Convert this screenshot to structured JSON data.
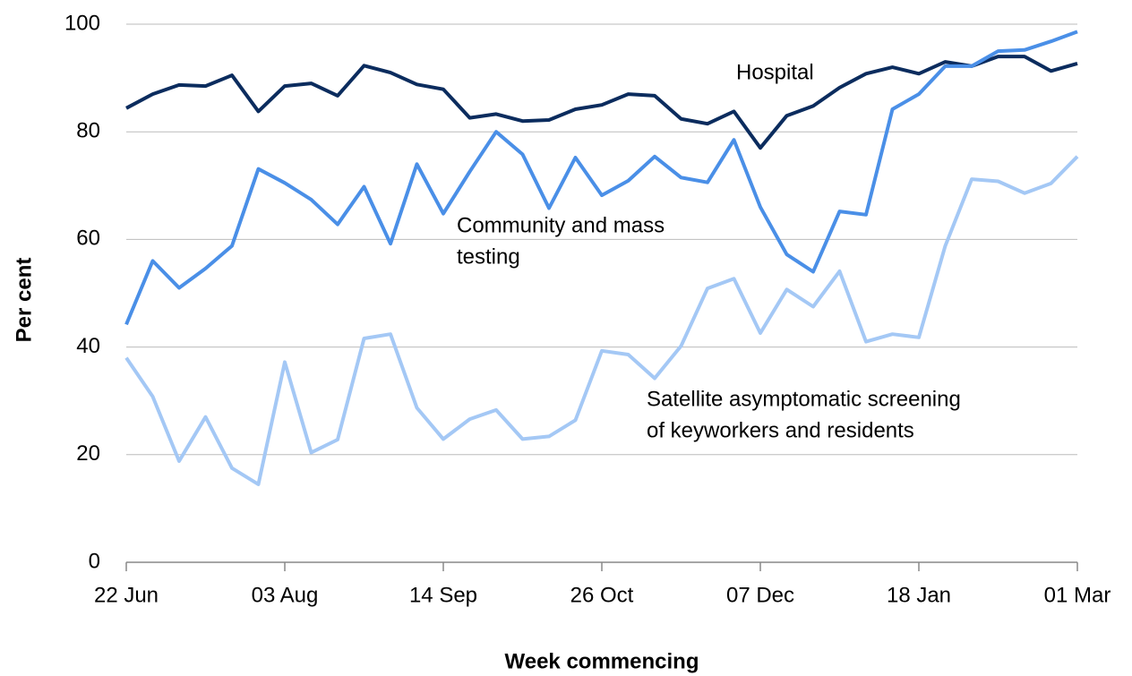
{
  "chart_data": {
    "type": "line",
    "x_label": "Week commencing",
    "y_label": "Per cent",
    "categories": [
      "22 Jun",
      null,
      null,
      null,
      null,
      null,
      "03 Aug",
      null,
      null,
      null,
      null,
      null,
      "14 Sep",
      null,
      null,
      null,
      null,
      null,
      "26 Oct",
      null,
      null,
      null,
      null,
      null,
      "07 Dec",
      null,
      null,
      null,
      null,
      null,
      "18 Jan",
      null,
      null,
      null,
      null,
      null,
      "01 Mar"
    ],
    "series": [
      {
        "name": [
          "Hospital"
        ],
        "color": "#0b2c5e",
        "values": [
          84.4,
          87,
          88.7,
          88.5,
          90.5,
          83.8,
          88.5,
          89,
          86.7,
          92.3,
          91,
          88.8,
          87.9,
          82.6,
          83.3,
          82,
          82.2,
          84.2,
          85,
          87,
          86.7,
          82.4,
          81.5,
          83.8,
          77,
          83,
          84.8,
          88.2,
          90.8,
          92,
          90.8,
          93,
          92.2,
          94,
          94,
          91.3,
          92.7
        ]
      },
      {
        "name": [
          "Community and mass",
          "testing"
        ],
        "color": "#4a8fe7",
        "values": [
          44.2,
          56,
          51,
          54.6,
          58.8,
          73.1,
          70.5,
          67.4,
          62.8,
          69.8,
          59.2,
          74,
          64.8,
          72.6,
          80,
          75.8,
          65.8,
          75.2,
          68.2,
          70.9,
          75.4,
          71.5,
          70.6,
          78.5,
          66,
          57.2,
          54,
          65.2,
          64.6,
          84.2,
          87,
          92.2,
          92.2,
          95,
          95.2,
          96.8,
          98.6
        ]
      },
      {
        "name": [
          "Satellite asymptomatic screening",
          "of keyworkers and residents"
        ],
        "color": "#a4c8f5",
        "values": [
          38,
          30.8,
          18.8,
          27,
          17.5,
          14.5,
          37.2,
          20.4,
          22.8,
          41.6,
          42.4,
          28.7,
          22.9,
          26.6,
          28.3,
          22.9,
          23.4,
          26.4,
          39.3,
          38.6,
          34.2,
          40.2,
          50.9,
          52.7,
          42.6,
          50.7,
          47.5,
          54.1,
          41,
          42.4,
          41.8,
          58.8,
          71.2,
          70.8,
          68.6,
          70.4,
          75.4
        ]
      }
    ],
    "ylim": [
      0,
      100
    ],
    "yticks": [
      0,
      20,
      40,
      60,
      80,
      100
    ],
    "grid": true
  }
}
